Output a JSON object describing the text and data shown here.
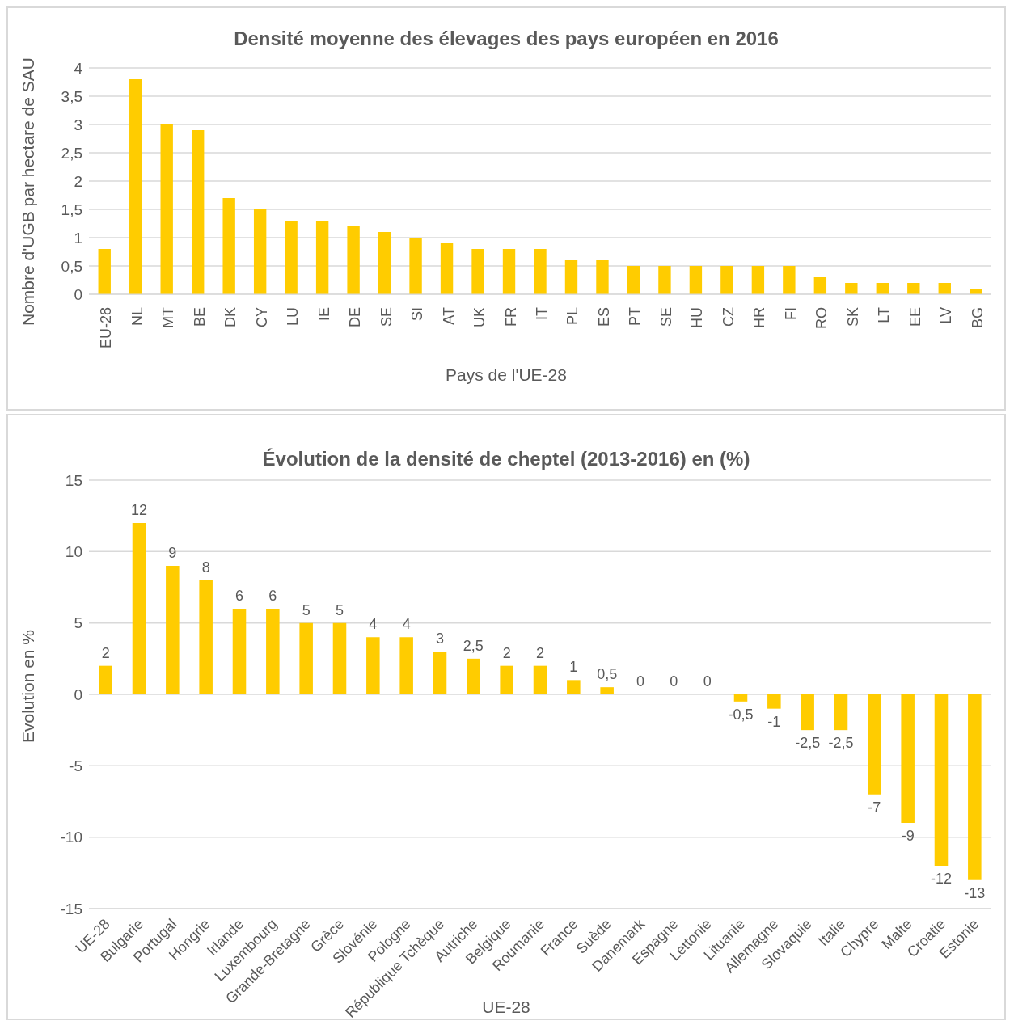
{
  "chart_data": [
    {
      "type": "bar",
      "title": "Densité moyenne des élevages des pays européen en 2016",
      "xlabel": "Pays de l'UE-28",
      "ylabel": "Nombre d'UGB par hectare de SAU",
      "categories": [
        "EU-28",
        "NL",
        "MT",
        "BE",
        "DK",
        "CY",
        "LU",
        "IE",
        "DE",
        "SE",
        "SI",
        "AT",
        "UK",
        "FR",
        "IT",
        "PL",
        "ES",
        "PT",
        "SE",
        "HU",
        "CZ",
        "HR",
        "FI",
        "RO",
        "SK",
        "LT",
        "EE",
        "LV",
        "BG"
      ],
      "values": [
        0.8,
        3.8,
        3.0,
        2.9,
        1.7,
        1.5,
        1.3,
        1.3,
        1.2,
        1.1,
        1.0,
        0.9,
        0.8,
        0.8,
        0.8,
        0.6,
        0.6,
        0.5,
        0.5,
        0.5,
        0.5,
        0.5,
        0.5,
        0.3,
        0.2,
        0.2,
        0.2,
        0.2,
        0.1
      ],
      "color": "#ffcc00",
      "ylim": [
        0,
        4
      ],
      "yticks": [
        0,
        {
          "value": 0.5,
          "label": "0,5"
        },
        1,
        {
          "value": 1.5,
          "label": "1,5"
        },
        2,
        {
          "value": 2.5,
          "label": "2,5"
        },
        3,
        {
          "value": 3.5,
          "label": "3,5"
        },
        4
      ],
      "grid": "y"
    },
    {
      "type": "bar",
      "title": "Évolution de la densité de cheptel (2013-2016) en (%)",
      "xlabel": "UE-28",
      "ylabel": "Evolution en %",
      "categories": [
        "UE-28",
        "Bulgarie",
        "Portugal",
        "Hongrie",
        "Irlande",
        "Luxembourg",
        "Grande-Bretagne",
        "Grèce",
        "Slovénie",
        "Pologne",
        "République Tchèque",
        "Autriche",
        "Belgique",
        "Roumanie",
        "France",
        "Suède",
        "Danemark",
        "Espagne",
        "Lettonie",
        "Lituanie",
        "Allemagne",
        "Slovaquie",
        "Italie",
        "Chypre",
        "Malte",
        "Croatie",
        "Estonie"
      ],
      "values": [
        2,
        12,
        9,
        8,
        6,
        6,
        5,
        5,
        4,
        4,
        3,
        2.5,
        2,
        2,
        1,
        0.5,
        0,
        0,
        0,
        -0.5,
        -1,
        -2.5,
        -2.5,
        -7,
        -9,
        -12,
        -13
      ],
      "value_labels": [
        "2",
        "12",
        "9",
        "8",
        "6",
        "6",
        "5",
        "5",
        "4",
        "4",
        "3",
        "2,5",
        "2",
        "2",
        "1",
        "0,5",
        "0",
        "0",
        "0",
        "-0,5",
        "-1",
        "-2,5",
        "-2,5",
        "-7",
        "-9",
        "-12",
        "-13"
      ],
      "color": "#ffcc00",
      "ylim": [
        -15,
        15
      ],
      "yticks": [
        -15,
        -10,
        -5,
        0,
        5,
        10,
        15
      ],
      "grid": "y"
    }
  ]
}
